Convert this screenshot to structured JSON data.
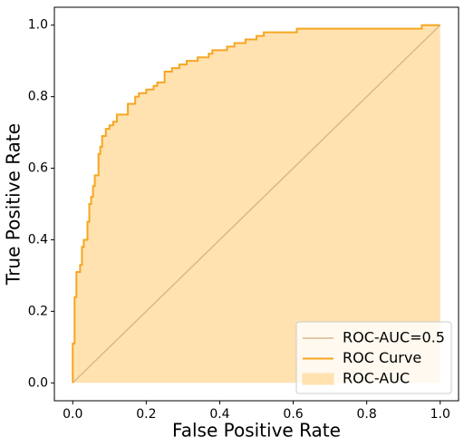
{
  "chart_data": {
    "type": "line",
    "xlabel": "False Positive Rate",
    "ylabel": "True Positive Rate",
    "xlim": [
      -0.05,
      1.05
    ],
    "ylim": [
      -0.05,
      1.05
    ],
    "xticks": [
      {
        "value": 0,
        "label": "0.0"
      },
      {
        "value": 0.2,
        "label": "0.2"
      },
      {
        "value": 0.4,
        "label": "0.4"
      },
      {
        "value": 0.6,
        "label": "0.6"
      },
      {
        "value": 0.8,
        "label": "0.8"
      },
      {
        "value": 1,
        "label": "1.0"
      }
    ],
    "yticks": [
      {
        "value": 0,
        "label": "0.0"
      },
      {
        "value": 0.2,
        "label": "0.2"
      },
      {
        "value": 0.4,
        "label": "0.4"
      },
      {
        "value": 0.6,
        "label": "0.6"
      },
      {
        "value": 0.8,
        "label": "0.8"
      },
      {
        "value": 1,
        "label": "1.0"
      }
    ],
    "legend": "lower right",
    "series": [
      {
        "name": "ROC-AUC=0.5",
        "color": "#d9b88f",
        "x": [
          0,
          1
        ],
        "values": [
          0,
          1
        ]
      },
      {
        "name": "ROC Curve",
        "color": "#f5a623",
        "x": [
          0,
          0,
          0.005,
          0.005,
          0.01,
          0.01,
          0.02,
          0.02,
          0.025,
          0.025,
          0.03,
          0.03,
          0.04,
          0.04,
          0.045,
          0.045,
          0.05,
          0.05,
          0.055,
          0.055,
          0.06,
          0.06,
          0.07,
          0.07,
          0.075,
          0.075,
          0.08,
          0.08,
          0.09,
          0.09,
          0.1,
          0.1,
          0.11,
          0.11,
          0.12,
          0.12,
          0.15,
          0.15,
          0.17,
          0.17,
          0.18,
          0.18,
          0.2,
          0.2,
          0.22,
          0.22,
          0.23,
          0.23,
          0.25,
          0.25,
          0.27,
          0.27,
          0.29,
          0.29,
          0.31,
          0.31,
          0.34,
          0.34,
          0.37,
          0.37,
          0.38,
          0.38,
          0.42,
          0.42,
          0.44,
          0.44,
          0.47,
          0.47,
          0.5,
          0.5,
          0.52,
          0.52,
          0.61,
          0.61,
          0.95,
          0.95,
          1.0
        ],
        "values": [
          0,
          0.11,
          0.11,
          0.24,
          0.24,
          0.31,
          0.31,
          0.33,
          0.33,
          0.38,
          0.38,
          0.4,
          0.4,
          0.45,
          0.45,
          0.5,
          0.5,
          0.52,
          0.52,
          0.55,
          0.55,
          0.58,
          0.58,
          0.64,
          0.64,
          0.66,
          0.66,
          0.69,
          0.69,
          0.71,
          0.71,
          0.72,
          0.72,
          0.73,
          0.73,
          0.75,
          0.75,
          0.78,
          0.78,
          0.8,
          0.8,
          0.81,
          0.81,
          0.82,
          0.82,
          0.83,
          0.83,
          0.84,
          0.84,
          0.87,
          0.87,
          0.88,
          0.88,
          0.89,
          0.89,
          0.9,
          0.9,
          0.91,
          0.91,
          0.92,
          0.92,
          0.93,
          0.93,
          0.94,
          0.94,
          0.95,
          0.95,
          0.96,
          0.96,
          0.97,
          0.97,
          0.98,
          0.98,
          0.99,
          0.99,
          1.0,
          1.0
        ]
      },
      {
        "name": "ROC-AUC",
        "color": "#ffe2b0"
      }
    ]
  }
}
